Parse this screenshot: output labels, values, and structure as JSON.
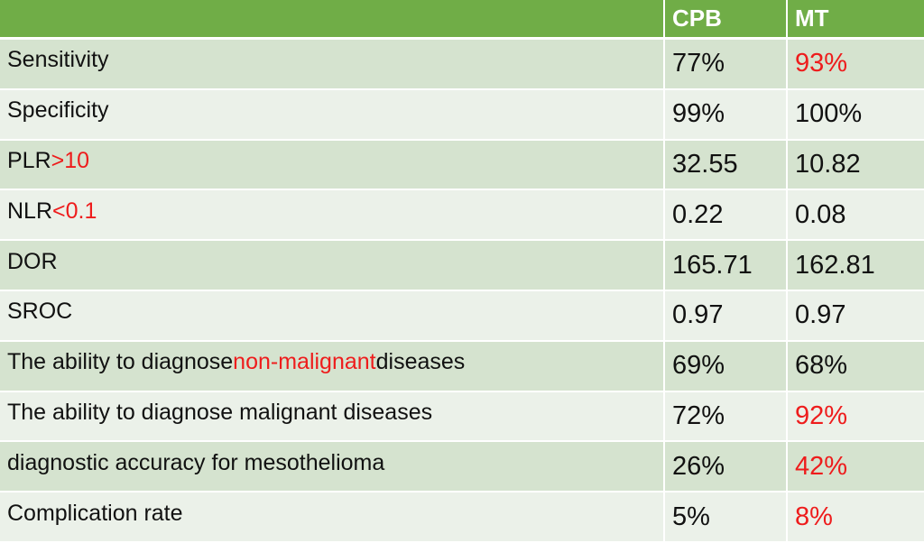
{
  "table": {
    "header": [
      "CPB",
      "MT"
    ],
    "rows": [
      {
        "label": [
          {
            "text": "Sensitivity"
          }
        ],
        "cpb": {
          "text": "77%"
        },
        "mt": {
          "text": "93%",
          "color": "#ee1c1c"
        }
      },
      {
        "label": [
          {
            "text": "Specificity"
          }
        ],
        "cpb": {
          "text": "99%"
        },
        "mt": {
          "text": "100%"
        }
      },
      {
        "label": [
          {
            "text": "PLR"
          },
          {
            "text": ">10",
            "color": "#ee1c1c"
          }
        ],
        "cpb": {
          "text": "32.55"
        },
        "mt": {
          "text": "10.82"
        }
      },
      {
        "label": [
          {
            "text": "NLR"
          },
          {
            "text": "<0.1",
            "color": "#ee1c1c"
          }
        ],
        "cpb": {
          "text": "0.22"
        },
        "mt": {
          "text": "0.08"
        }
      },
      {
        "label": [
          {
            "text": "DOR"
          }
        ],
        "cpb": {
          "text": "165.71"
        },
        "mt": {
          "text": "162.81"
        }
      },
      {
        "label": [
          {
            "text": "SROC"
          }
        ],
        "cpb": {
          "text": "0.97"
        },
        "mt": {
          "text": "0.97"
        }
      },
      {
        "label": [
          {
            "text": "The ability to diagnose "
          },
          {
            "text": "non-malignant",
            "color": "#ee1c1c"
          },
          {
            "text": " diseases"
          }
        ],
        "cpb": {
          "text": "69%"
        },
        "mt": {
          "text": "68%"
        }
      },
      {
        "label": [
          {
            "text": "The ability to diagnose malignant diseases"
          }
        ],
        "cpb": {
          "text": "72%"
        },
        "mt": {
          "text": "92%",
          "color": "#ee1c1c"
        }
      },
      {
        "label": [
          {
            "text": "diagnostic accuracy for mesothelioma"
          }
        ],
        "cpb": {
          "text": "26%"
        },
        "mt": {
          "text": "42%",
          "color": "#ee1c1c"
        }
      },
      {
        "label": [
          {
            "text": "Complication rate"
          }
        ],
        "cpb": {
          "text": "5%"
        },
        "mt": {
          "text": "8%",
          "color": "#ee1c1c"
        }
      }
    ]
  }
}
